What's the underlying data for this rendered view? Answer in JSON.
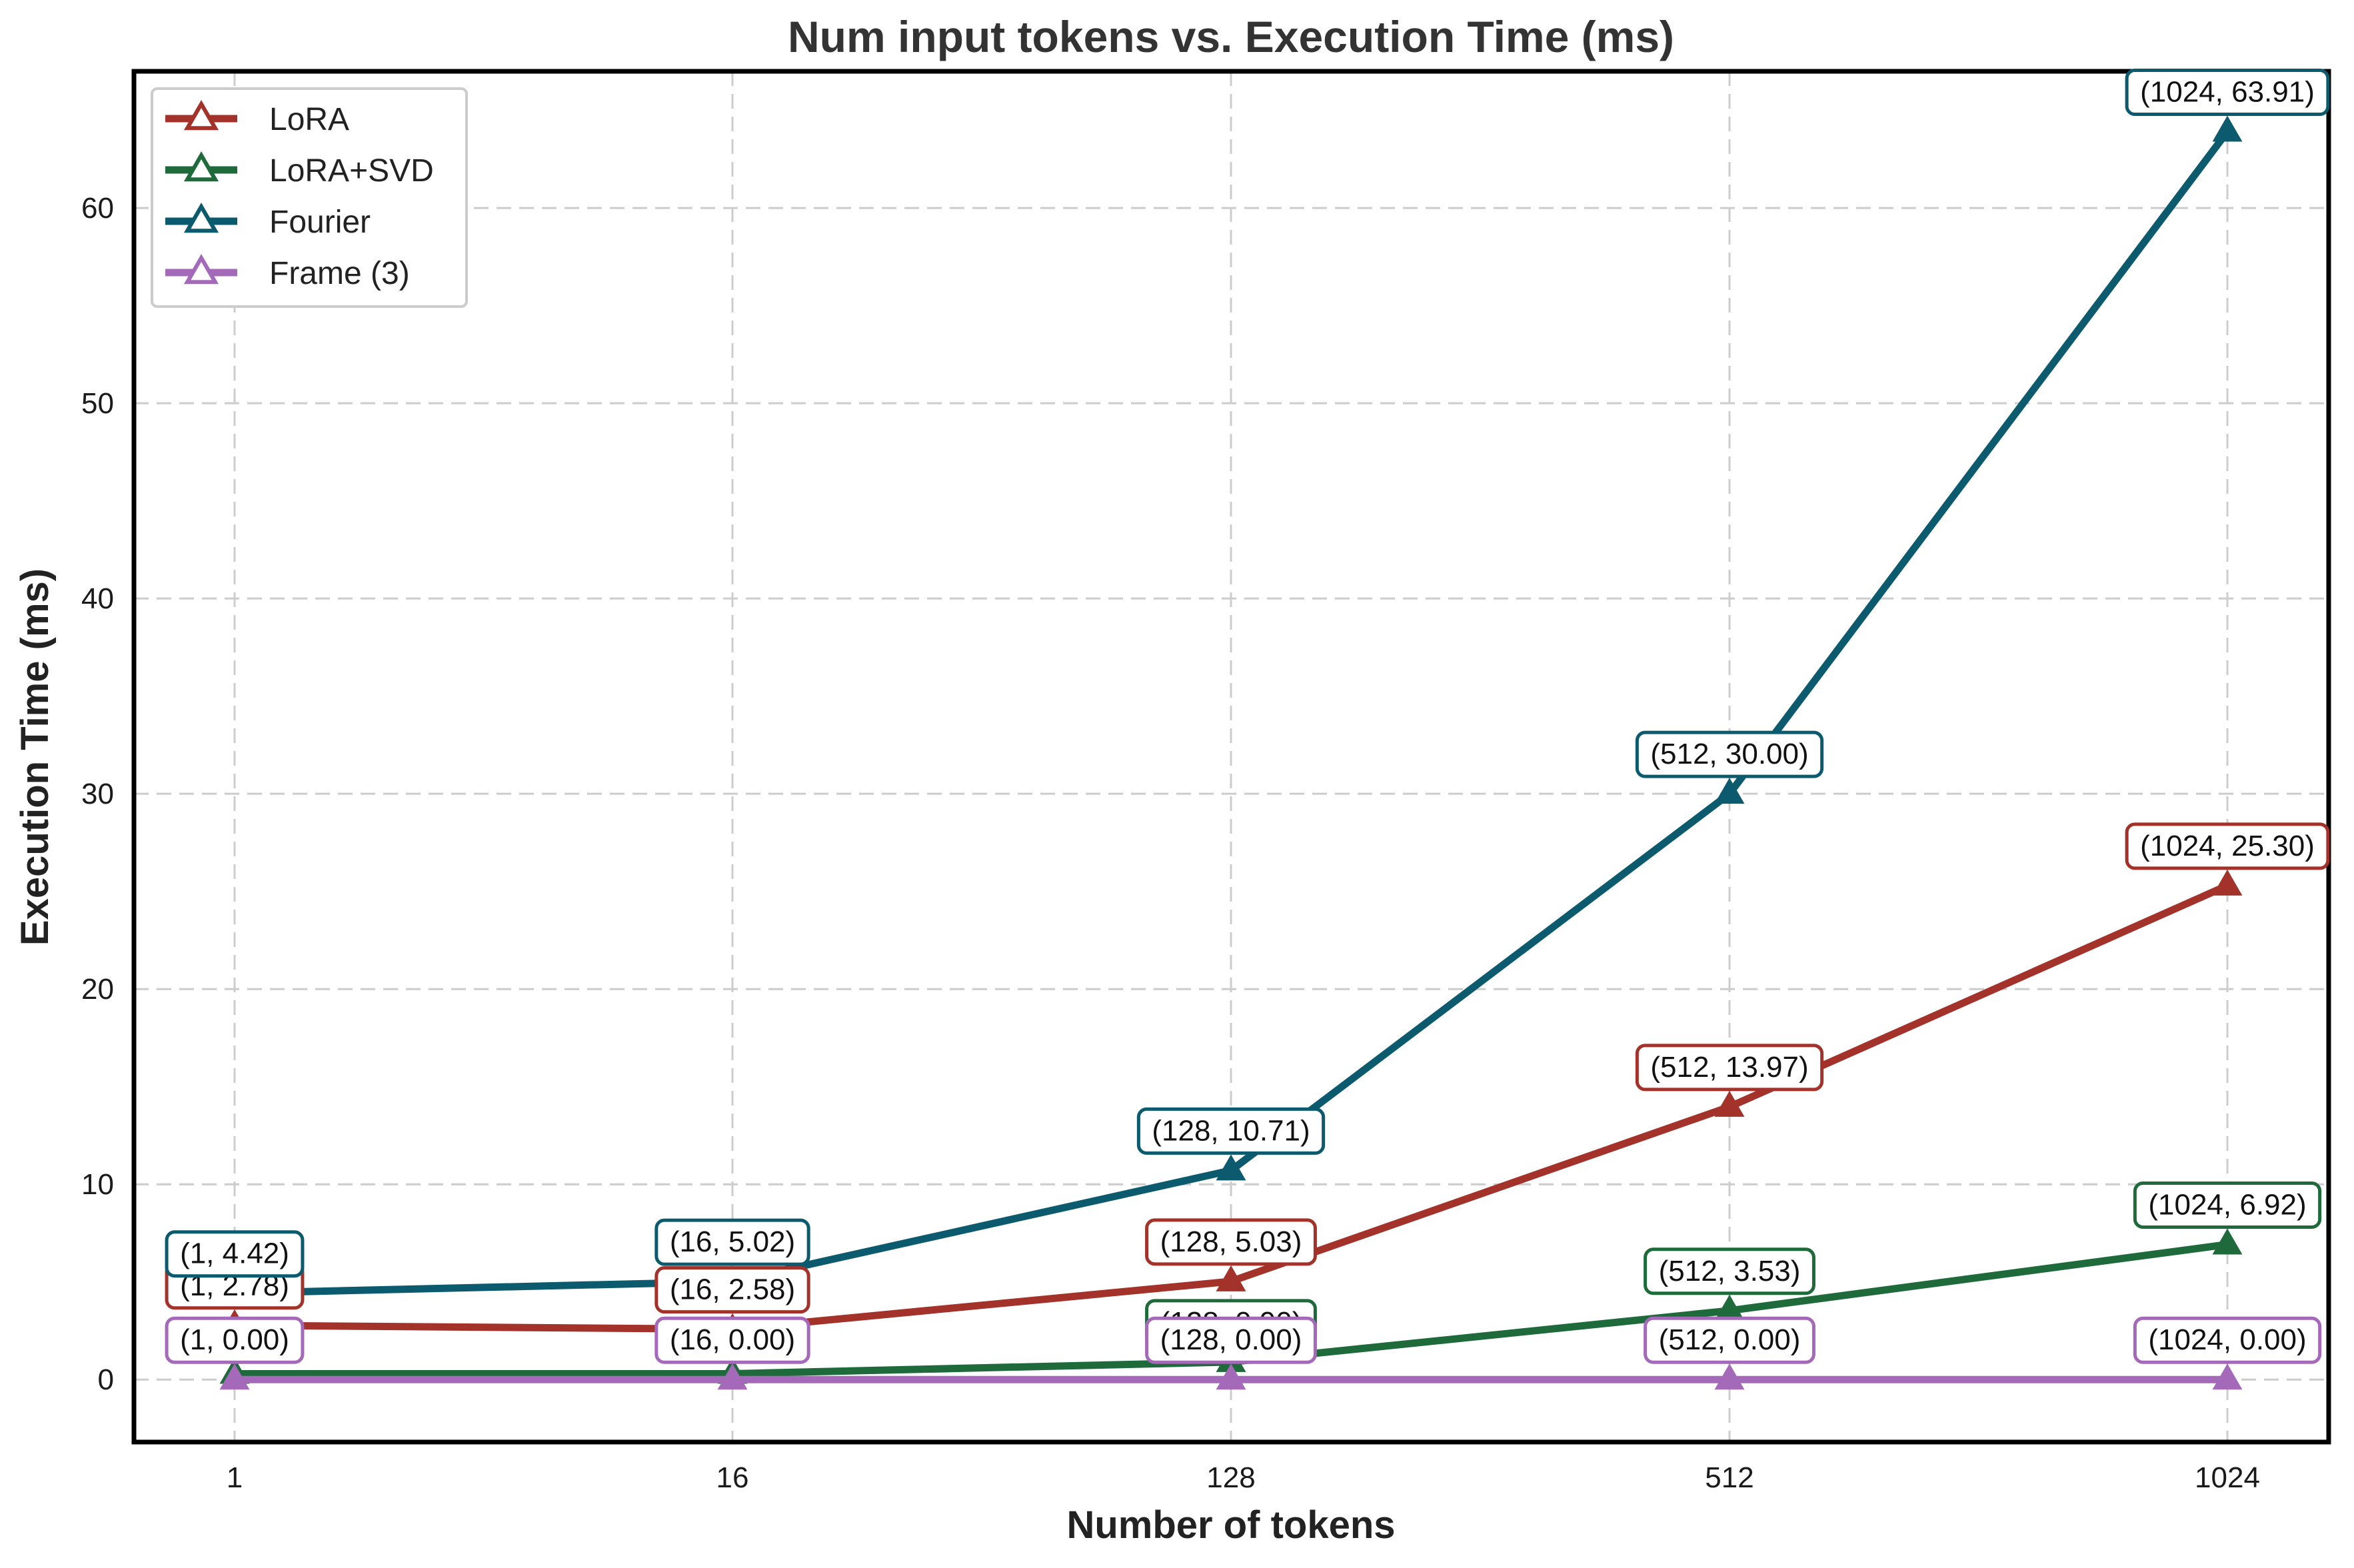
{
  "chart_data": {
    "type": "line",
    "title": "Num input tokens vs. Execution Time (ms)",
    "xlabel": "Number of tokens",
    "ylabel": "Execution Time (ms)",
    "categories": [
      "1",
      "16",
      "128",
      "512",
      "1024"
    ],
    "ylim": [
      -3.2,
      67
    ],
    "yticks": [
      0,
      10,
      20,
      30,
      40,
      50,
      60
    ],
    "grid": true,
    "legend_position": "top-left",
    "marker": "triangle",
    "series": [
      {
        "name": "LoRA",
        "color": "#a3322a",
        "values": [
          2.78,
          2.58,
          5.03,
          13.97,
          25.3
        ],
        "labels": [
          "(1, 2.78)",
          "(16, 2.58)",
          "(128, 5.03)",
          "(512, 13.97)",
          "(1024, 25.30)"
        ]
      },
      {
        "name": "LoRA+SVD",
        "color": "#1e6a3a",
        "values": [
          0.3,
          0.3,
          0.9,
          3.53,
          6.92
        ],
        "labels": [
          "",
          "",
          "(128, 0.90)",
          "(512, 3.53)",
          "(1024, 6.92)"
        ]
      },
      {
        "name": "Fourier",
        "color": "#0b5a6e",
        "values": [
          4.42,
          5.02,
          10.71,
          30.0,
          63.91
        ],
        "labels": [
          "(1, 4.42)",
          "(16, 5.02)",
          "(128, 10.71)",
          "(512, 30.00)",
          "(1024, 63.91)"
        ]
      },
      {
        "name": "Frame (3)",
        "color": "#a469b8",
        "values": [
          0.0,
          0.0,
          0.0,
          0.0,
          0.0
        ],
        "labels": [
          "(1, 0.00)",
          "(16, 0.00)",
          "(128, 0.00)",
          "(512, 0.00)",
          "(1024, 0.00)"
        ]
      }
    ]
  }
}
